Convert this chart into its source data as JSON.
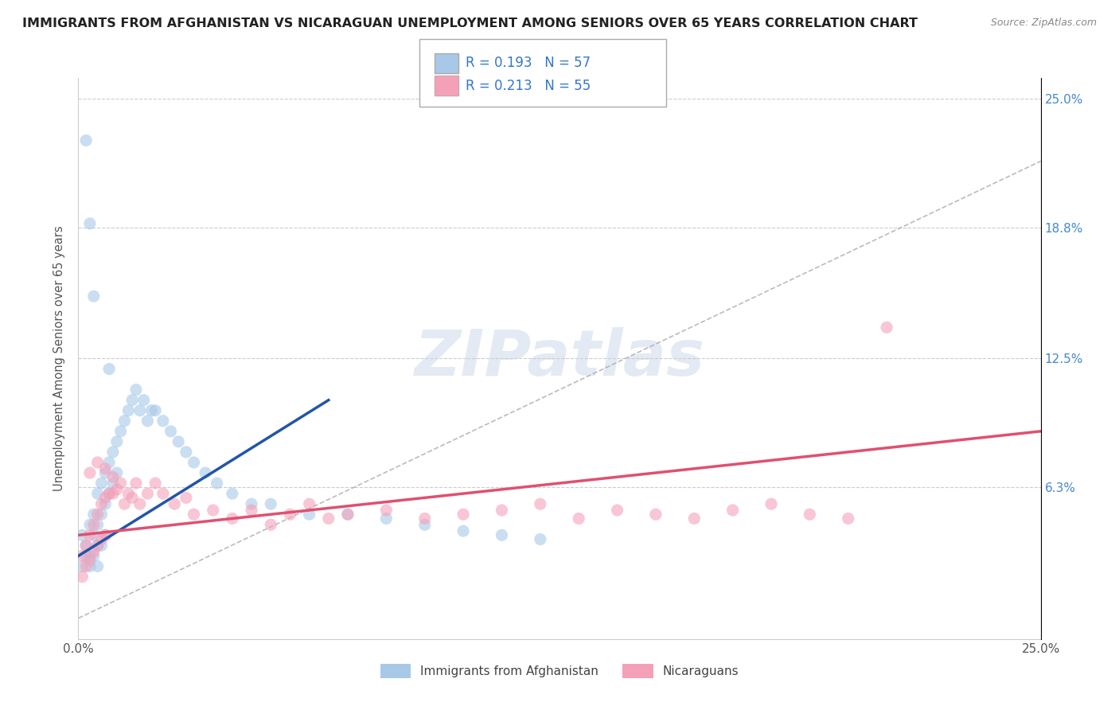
{
  "title": "IMMIGRANTS FROM AFGHANISTAN VS NICARAGUAN UNEMPLOYMENT AMONG SENIORS OVER 65 YEARS CORRELATION CHART",
  "source": "Source: ZipAtlas.com",
  "ylabel": "Unemployment Among Seniors over 65 years",
  "xlim": [
    0.0,
    0.25
  ],
  "ylim": [
    -0.01,
    0.26
  ],
  "xtick_vals": [
    0.0,
    0.25
  ],
  "xtick_labels": [
    "0.0%",
    "25.0%"
  ],
  "ytick_vals": [
    0.063,
    0.125,
    0.188,
    0.25
  ],
  "ytick_labels": [
    "6.3%",
    "12.5%",
    "18.8%",
    "25.0%"
  ],
  "color_blue": "#a8c8e8",
  "color_pink": "#f4a0b8",
  "line_blue": "#2255aa",
  "line_pink": "#e05070",
  "line_dashed_color": "#aaaaaa",
  "watermark": "ZIPatlas",
  "legend_r1": "R = 0.193",
  "legend_n1": "N = 57",
  "legend_r2": "R = 0.213",
  "legend_n2": "N = 55",
  "legend_label1": "Immigrants from Afghanistan",
  "legend_label2": "Nicaraguans",
  "blue_x": [
    0.001,
    0.001,
    0.002,
    0.002,
    0.003,
    0.003,
    0.003,
    0.004,
    0.004,
    0.004,
    0.005,
    0.005,
    0.005,
    0.005,
    0.006,
    0.006,
    0.006,
    0.007,
    0.007,
    0.007,
    0.008,
    0.008,
    0.009,
    0.009,
    0.01,
    0.01,
    0.011,
    0.012,
    0.013,
    0.014,
    0.015,
    0.016,
    0.017,
    0.018,
    0.019,
    0.02,
    0.022,
    0.024,
    0.026,
    0.028,
    0.03,
    0.033,
    0.036,
    0.04,
    0.045,
    0.05,
    0.06,
    0.07,
    0.08,
    0.09,
    0.1,
    0.11,
    0.12,
    0.002,
    0.003,
    0.004,
    0.008
  ],
  "blue_y": [
    0.04,
    0.025,
    0.035,
    0.03,
    0.045,
    0.03,
    0.025,
    0.05,
    0.04,
    0.03,
    0.06,
    0.045,
    0.035,
    0.025,
    0.065,
    0.05,
    0.035,
    0.07,
    0.055,
    0.04,
    0.075,
    0.06,
    0.08,
    0.065,
    0.085,
    0.07,
    0.09,
    0.095,
    0.1,
    0.105,
    0.11,
    0.1,
    0.105,
    0.095,
    0.1,
    0.1,
    0.095,
    0.09,
    0.085,
    0.08,
    0.075,
    0.07,
    0.065,
    0.06,
    0.055,
    0.055,
    0.05,
    0.05,
    0.048,
    0.045,
    0.042,
    0.04,
    0.038,
    0.23,
    0.19,
    0.155,
    0.12
  ],
  "pink_x": [
    0.001,
    0.001,
    0.002,
    0.002,
    0.003,
    0.003,
    0.004,
    0.004,
    0.005,
    0.005,
    0.006,
    0.006,
    0.007,
    0.007,
    0.008,
    0.009,
    0.01,
    0.011,
    0.012,
    0.013,
    0.014,
    0.015,
    0.016,
    0.018,
    0.02,
    0.022,
    0.025,
    0.028,
    0.03,
    0.035,
    0.04,
    0.045,
    0.05,
    0.055,
    0.06,
    0.065,
    0.07,
    0.08,
    0.09,
    0.1,
    0.11,
    0.12,
    0.13,
    0.14,
    0.15,
    0.16,
    0.17,
    0.18,
    0.19,
    0.2,
    0.003,
    0.005,
    0.007,
    0.21,
    0.009
  ],
  "pink_y": [
    0.03,
    0.02,
    0.035,
    0.025,
    0.04,
    0.028,
    0.045,
    0.032,
    0.05,
    0.035,
    0.055,
    0.038,
    0.058,
    0.04,
    0.06,
    0.06,
    0.062,
    0.065,
    0.055,
    0.06,
    0.058,
    0.065,
    0.055,
    0.06,
    0.065,
    0.06,
    0.055,
    0.058,
    0.05,
    0.052,
    0.048,
    0.052,
    0.045,
    0.05,
    0.055,
    0.048,
    0.05,
    0.052,
    0.048,
    0.05,
    0.052,
    0.055,
    0.048,
    0.052,
    0.05,
    0.048,
    0.052,
    0.055,
    0.05,
    0.048,
    0.07,
    0.075,
    0.072,
    0.14,
    0.068
  ],
  "blue_line_x": [
    0.0,
    0.065
  ],
  "blue_line_y": [
    0.03,
    0.105
  ],
  "pink_line_x": [
    0.0,
    0.25
  ],
  "pink_line_y": [
    0.04,
    0.09
  ]
}
